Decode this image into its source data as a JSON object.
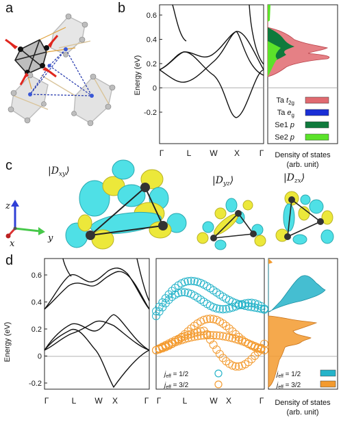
{
  "panel_letters": {
    "a": "a",
    "b": "b",
    "c": "c",
    "d": "d"
  },
  "panel_b": {
    "ylabel": "Energy (eV)",
    "yticks": [
      "0.6",
      "0.4",
      "0.2",
      "0",
      "-0.2"
    ],
    "xticks": [
      "Γ",
      "L",
      "W",
      "X",
      "Γ"
    ],
    "dos_xlabel_line1": "Density of states",
    "dos_xlabel_line2": "(arb. unit)",
    "legend": [
      {
        "label_main": "Ta ",
        "label_it": "t",
        "label_sub": "2g",
        "color": "#e06a70"
      },
      {
        "label_main": "Ta ",
        "label_it": "e",
        "label_sub": "g",
        "color": "#1a2fd6"
      },
      {
        "label_main": "Se1 ",
        "label_it": "p",
        "label_sub": "",
        "color": "#0f7a3c"
      },
      {
        "label_main": "Se2 ",
        "label_it": "p",
        "label_sub": "",
        "color": "#5be32a"
      }
    ]
  },
  "panel_c": {
    "orbitals": [
      {
        "bra": "|D",
        "sub": "xy",
        "ket": "⟩"
      },
      {
        "bra": "|D",
        "sub": "yz",
        "ket": "⟩"
      },
      {
        "bra": "|D",
        "sub": "zx",
        "ket": "⟩"
      }
    ],
    "axes": {
      "z": "z",
      "y": "y",
      "x": "x"
    }
  },
  "panel_d": {
    "ylabel": "Energy (eV)",
    "yticks": [
      "0.6",
      "0.4",
      "0.2",
      "0",
      "-0.2"
    ],
    "xticks": [
      "Γ",
      "L",
      "W",
      "X",
      "Γ"
    ],
    "legend": [
      {
        "prefix": "j",
        "sub": "eff",
        "value": " = 1/2",
        "color": "#25b3c9"
      },
      {
        "prefix": "j",
        "sub": "eff",
        "value": " = 3/2",
        "color": "#f39a2e"
      }
    ],
    "dos_xlabel_line1": "Density of states",
    "dos_xlabel_line2": "(arb. unit)"
  },
  "colors": {
    "teal": "#25b3c9",
    "orange": "#f39a2e",
    "yellow": "#ece83a",
    "cyan": "#4fe0e6"
  }
}
